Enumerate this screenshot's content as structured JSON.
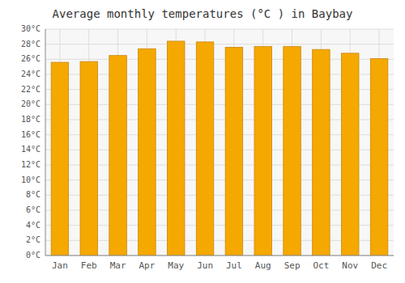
{
  "chart_data": {
    "type": "bar",
    "title": "Average monthly temperatures (°C ) in Baybay",
    "categories": [
      "Jan",
      "Feb",
      "Mar",
      "Apr",
      "May",
      "Jun",
      "Jul",
      "Aug",
      "Sep",
      "Oct",
      "Nov",
      "Dec"
    ],
    "values": [
      25.6,
      25.7,
      26.5,
      27.4,
      28.4,
      28.3,
      27.6,
      27.7,
      27.7,
      27.3,
      26.8,
      26.1
    ],
    "color": "#F5A800",
    "ylim": [
      0,
      30
    ],
    "yticks": [
      {
        "value": 0,
        "label": "0°C"
      },
      {
        "value": 2,
        "label": "2°C"
      },
      {
        "value": 4,
        "label": "4°C"
      },
      {
        "value": 6,
        "label": "6°C"
      },
      {
        "value": 8,
        "label": "8°C"
      },
      {
        "value": 10,
        "label": "10°C"
      },
      {
        "value": 12,
        "label": "12°C"
      },
      {
        "value": 14,
        "label": "14°C"
      },
      {
        "value": 16,
        "label": "16°C"
      },
      {
        "value": 18,
        "label": "18°C"
      },
      {
        "value": 20,
        "label": "20°C"
      },
      {
        "value": 22,
        "label": "22°C"
      },
      {
        "value": 24,
        "label": "24°C"
      },
      {
        "value": 26,
        "label": "26°C"
      },
      {
        "value": 28,
        "label": "28°C"
      },
      {
        "value": 30,
        "label": "30°C"
      }
    ],
    "grid": true
  }
}
